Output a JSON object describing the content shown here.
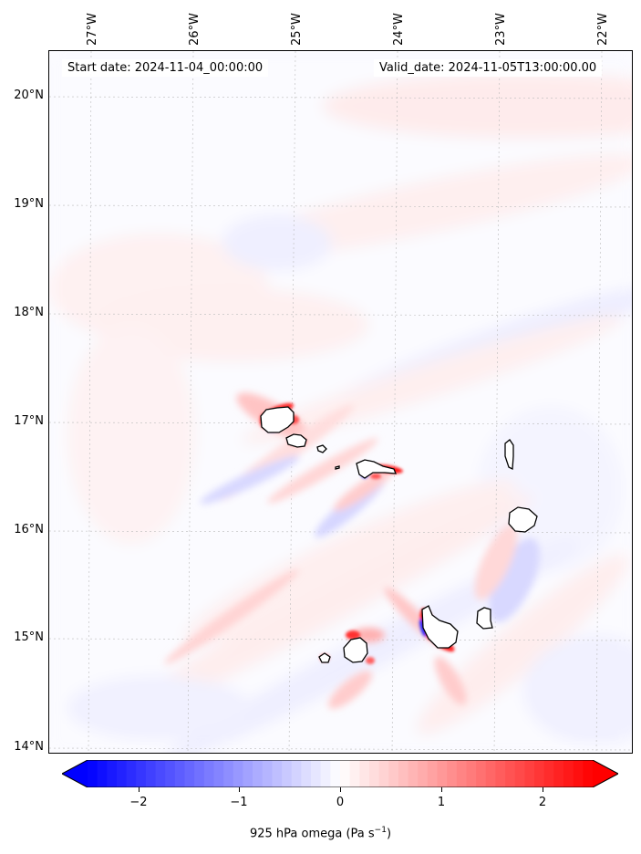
{
  "map": {
    "start_label": "Start date: 2024-11-04_00:00:00",
    "valid_label": "Valid_date: 2024-11-05T13:00:00.00",
    "lon_ticks": [
      "27°W",
      "26°W",
      "25°W",
      "24°W",
      "23°W",
      "22°W"
    ],
    "lat_ticks": [
      "20°N",
      "19°N",
      "18°N",
      "17°N",
      "16°N",
      "15°N",
      "14°N"
    ],
    "gridlines": "dashed, light grey"
  },
  "colorbar": {
    "ticks": [
      "−2",
      "−1",
      "0",
      "1",
      "2"
    ],
    "range": [
      -2.6,
      2.6
    ],
    "extend": "both",
    "colormap": "bwr",
    "label_main": "925 hPa omega (Pa s",
    "label_unit_exp": "−1",
    "label_close": ")",
    "colors": {
      "neg": "#0000ff",
      "mid": "#ffffff",
      "pos": "#ff0000"
    }
  }
}
